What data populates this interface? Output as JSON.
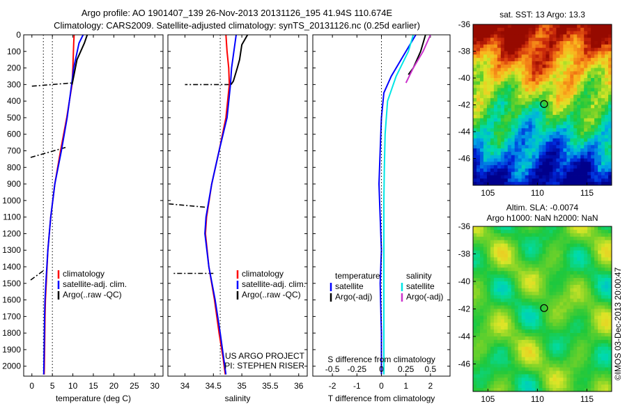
{
  "header": {
    "line1": "Argo profile: AO 1901407_139 26-Nov-2013 20131126_195 41.94S 110.674E",
    "line2": "Climatology: CARS2009. Satellite-adjusted climatology: synTS_20131126.nc (0.25d earlier)"
  },
  "depth_axis": {
    "ticks": [
      0,
      100,
      200,
      300,
      400,
      500,
      600,
      700,
      800,
      900,
      1000,
      1100,
      1200,
      1300,
      1400,
      1500,
      1600,
      1700,
      1800,
      1900,
      2000
    ]
  },
  "chart_data": [
    {
      "id": "temperature",
      "type": "line",
      "xlabel": "temperature (deg C)",
      "xlim": [
        -2,
        32
      ],
      "ylim": [
        0,
        2060
      ],
      "xticks": [
        0,
        5,
        10,
        15,
        20,
        25,
        30
      ],
      "reference_lines": [
        2.8,
        5.0
      ],
      "legend": [
        "climatology",
        "satellite-adj. clim.",
        "Argo(..raw -QC)"
      ],
      "legend_placement": "lower-right",
      "series": [
        {
          "name": "climatology",
          "color": "#ff0000",
          "x": [
            10.3,
            10.2,
            10.0,
            9.8,
            8.5,
            7.0,
            5.6,
            4.6,
            3.9,
            3.5,
            3.3,
            3.2,
            3.1,
            3.0
          ],
          "y": [
            0,
            50,
            200,
            300,
            500,
            700,
            900,
            1100,
            1300,
            1500,
            1600,
            1700,
            1900,
            2050
          ]
        },
        {
          "name": "satellite-adj. clim.",
          "color": "#0000ff",
          "x": [
            12.5,
            11.5,
            10.2,
            9.7,
            8.6,
            7.2,
            5.6,
            4.6,
            3.9,
            3.4,
            3.2,
            3.1,
            3.0,
            2.9
          ],
          "y": [
            0,
            50,
            200,
            300,
            500,
            700,
            900,
            1100,
            1300,
            1500,
            1600,
            1700,
            1900,
            2050
          ]
        },
        {
          "name": "Argo(..raw -QC)",
          "color": "#000000",
          "x": [
            13.5,
            12.8,
            11.0,
            10.2,
            9.8
          ],
          "y": [
            0,
            50,
            150,
            250,
            300
          ]
        }
      ],
      "dashed_segments": [
        {
          "x": [
            0,
            10.0
          ],
          "y": [
            310,
            290
          ]
        },
        {
          "x": [
            -0.3,
            8.2
          ],
          "y": [
            740,
            680
          ]
        },
        {
          "x": [
            -0.3,
            3.0
          ],
          "y": [
            1480,
            1420
          ]
        }
      ]
    },
    {
      "id": "salinity",
      "type": "line",
      "xlabel": "salinity",
      "xlim": [
        33.7,
        36.15
      ],
      "ylim": [
        0,
        2060
      ],
      "xticks": [
        34,
        34.5,
        35,
        35.5,
        36
      ],
      "reference_lines": [
        34.62
      ],
      "legend": [
        "climatology",
        "satellite-adj. clim.",
        "Argo(..raw -QC)"
      ],
      "legend_placement": "lower-right",
      "annotation": [
        "US ARGO PROJECT",
        "PI: STEPHEN RISER"
      ],
      "series": [
        {
          "name": "climatology",
          "color": "#ff0000",
          "x": [
            34.72,
            34.74,
            34.77,
            34.78,
            34.72,
            34.6,
            34.47,
            34.38,
            34.36,
            34.42,
            34.52,
            34.6,
            34.67,
            34.71
          ],
          "y": [
            0,
            100,
            200,
            300,
            500,
            700,
            900,
            1100,
            1200,
            1400,
            1600,
            1800,
            1950,
            2050
          ]
        },
        {
          "name": "satellite-adj. clim.",
          "color": "#0000ff",
          "x": [
            34.9,
            34.86,
            34.82,
            34.8,
            34.74,
            34.6,
            34.47,
            34.37,
            34.35,
            34.42,
            34.53,
            34.62,
            34.68,
            34.72
          ],
          "y": [
            0,
            100,
            200,
            300,
            500,
            700,
            900,
            1100,
            1200,
            1400,
            1600,
            1800,
            1950,
            2050
          ]
        },
        {
          "name": "Argo(..raw -QC)",
          "color": "#000000",
          "x": [
            35.1,
            35.0,
            34.96,
            34.92,
            34.85,
            34.81
          ],
          "y": [
            0,
            60,
            150,
            200,
            280,
            300
          ]
        }
      ],
      "dashed_segments": [
        {
          "x": [
            34.78,
            34.0
          ],
          "y": [
            300,
            300
          ]
        },
        {
          "x": [
            34.35,
            33.7
          ],
          "y": [
            1040,
            1020
          ]
        },
        {
          "x": [
            34.5,
            33.8
          ],
          "y": [
            1440,
            1440
          ]
        }
      ]
    },
    {
      "id": "difference",
      "type": "line",
      "xlabel": "T difference from climatology",
      "title_text": "S difference from climatology",
      "xlim": [
        -2.8,
        2.8
      ],
      "ylim": [
        0,
        2060
      ],
      "xticks": [
        -2,
        -1,
        0,
        1,
        2
      ],
      "top_ticks": [
        "-0.5",
        "-0.25",
        "0",
        "0.25",
        "0.5"
      ],
      "legend_left": [
        "temperature",
        "satellite",
        "Argo(-adj)"
      ],
      "legend_right": [
        "salinity",
        "satellite",
        "Argo(-adj)"
      ],
      "series": [
        {
          "name": "temperature satellite",
          "color": "#0000ff",
          "x": [
            1.4,
            1.0,
            0.4,
            0.1,
            0.0,
            -0.05,
            -0.1,
            -0.05,
            0.0,
            -0.05,
            0.0,
            0.0
          ],
          "y": [
            0,
            100,
            250,
            350,
            500,
            700,
            900,
            1100,
            1300,
            1500,
            1800,
            2050
          ]
        },
        {
          "name": "salinity satellite",
          "color": "#00e5e5",
          "x": [
            1.3,
            1.1,
            0.6,
            0.25,
            0.15,
            0.12,
            0.1,
            0.1,
            0.1,
            0.1,
            0.1
          ],
          "y": [
            0,
            100,
            250,
            400,
            600,
            800,
            1000,
            1200,
            1500,
            1800,
            2050
          ]
        },
        {
          "name": "temperature Argo(-adj)",
          "color": "#000000",
          "x": [
            1.8,
            1.6,
            1.3,
            1.1
          ],
          "y": [
            0,
            100,
            200,
            240
          ]
        },
        {
          "name": "salinity Argo(-adj)",
          "color": "#cc33cc",
          "x": [
            2.0,
            1.7,
            1.3,
            1.0
          ],
          "y": [
            0,
            100,
            200,
            290
          ]
        }
      ]
    },
    {
      "id": "sst_map",
      "type": "heatmap",
      "title": "sat. SST: 13 Argo: 13.3",
      "xlim": [
        103.5,
        117.5
      ],
      "ylim": [
        -48,
        -36
      ],
      "xticks": [
        105,
        110,
        115
      ],
      "yticks": [
        -36,
        -38,
        -40,
        -42,
        -44,
        -46
      ],
      "float_position": [
        110.674,
        -41.94
      ]
    },
    {
      "id": "sla_map",
      "type": "heatmap",
      "title": "Altim. SLA: -0.0074",
      "subtitle": "Argo h1000: NaN h2000: NaN",
      "xlim": [
        103.5,
        117.5
      ],
      "ylim": [
        -48,
        -36
      ],
      "xticks": [
        105,
        110,
        115
      ],
      "yticks": [
        -36,
        -38,
        -40,
        -42,
        -44,
        -46
      ],
      "float_position": [
        110.674,
        -41.94
      ],
      "side_label": "©IMOS 03-Dec-2013 20:00:47"
    }
  ],
  "colors": {
    "climatology": "#ff0000",
    "satellite": "#0000ff",
    "argo": "#000000",
    "sal_satellite": "#00e5e5",
    "sal_argo": "#cc33cc"
  }
}
